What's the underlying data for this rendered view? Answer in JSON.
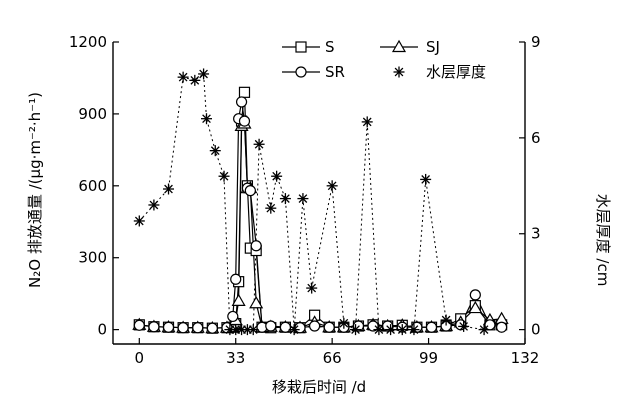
{
  "chart_data": {
    "type": "line",
    "title": "",
    "xlabel": "移栽后时间 /d",
    "ylabel_left": "N₂O 排放通量 /(μg·m⁻²·h⁻¹)",
    "ylabel_right": "水层厚度 /cm",
    "xlim": [
      -9,
      132
    ],
    "ylim_left": [
      -60,
      1200
    ],
    "ylim_right": [
      -0.45,
      9
    ],
    "x_ticks": [
      0,
      33,
      66,
      99,
      132
    ],
    "y_ticks_left": [
      0,
      300,
      600,
      900,
      1200
    ],
    "y_ticks_right": [
      0,
      3,
      6,
      9
    ],
    "x_tick_labels": [
      "0",
      "33",
      "66",
      "99",
      "132"
    ],
    "y_tick_labels_left": [
      "0",
      "300",
      "600",
      "900",
      "1200"
    ],
    "y_tick_labels_right": [
      "0",
      "3",
      "6",
      "9"
    ],
    "legend": {
      "placement": "top-right",
      "labels": [
        "S",
        "SJ",
        "SR",
        "水层厚度"
      ]
    },
    "series": [
      {
        "name": "S",
        "marker": "square",
        "x": [
          0,
          5,
          10,
          15,
          20,
          25,
          30,
          32,
          33,
          34,
          35,
          36,
          37,
          38,
          40,
          42,
          45,
          50,
          55,
          60,
          65,
          70,
          75,
          80,
          85,
          90,
          95,
          100,
          105,
          110,
          115,
          120,
          124
        ],
        "y": [
          20,
          12,
          10,
          8,
          8,
          6,
          8,
          10,
          25,
          200,
          870,
          990,
          600,
          340,
          330,
          10,
          8,
          10,
          8,
          60,
          10,
          10,
          15,
          20,
          15,
          18,
          10,
          10,
          15,
          45,
          100,
          20,
          20
        ]
      },
      {
        "name": "SJ",
        "marker": "triangle",
        "x": [
          0,
          5,
          10,
          15,
          20,
          25,
          30,
          32,
          33,
          34,
          35,
          36,
          37,
          38,
          40,
          42,
          45,
          50,
          55,
          60,
          65,
          70,
          75,
          80,
          85,
          90,
          95,
          100,
          105,
          110,
          115,
          120,
          124
        ],
        "y": [
          20,
          12,
          10,
          8,
          8,
          6,
          8,
          10,
          40,
          120,
          850,
          860,
          590,
          590,
          110,
          10,
          12,
          10,
          8,
          30,
          10,
          10,
          15,
          20,
          15,
          18,
          10,
          10,
          15,
          30,
          90,
          40,
          45
        ]
      },
      {
        "name": "SR",
        "marker": "circle",
        "x": [
          0,
          5,
          10,
          15,
          20,
          25,
          30,
          32,
          33,
          34,
          35,
          36,
          37,
          38,
          40,
          42,
          45,
          50,
          55,
          60,
          65,
          70,
          75,
          80,
          85,
          90,
          95,
          100,
          105,
          110,
          115,
          120,
          124
        ],
        "y": [
          18,
          12,
          10,
          8,
          8,
          6,
          8,
          55,
          210,
          880,
          950,
          870,
          590,
          580,
          350,
          10,
          15,
          10,
          8,
          15,
          10,
          10,
          15,
          15,
          15,
          10,
          10,
          10,
          15,
          20,
          145,
          20,
          10
        ]
      },
      {
        "name": "水层厚度",
        "marker": "asterisk",
        "axis": "right",
        "x": [
          0,
          5,
          10,
          15,
          19,
          22,
          23,
          26,
          29,
          31,
          33,
          35,
          37,
          39,
          41,
          45,
          47,
          50,
          53,
          56,
          59,
          66,
          70,
          74,
          78,
          82,
          86,
          90,
          94,
          98,
          105,
          111,
          118
        ],
        "y": [
          3.4,
          3.9,
          4.4,
          7.9,
          7.8,
          8.0,
          6.6,
          5.6,
          4.8,
          0,
          0,
          0,
          0,
          0,
          5.8,
          3.8,
          4.8,
          4.1,
          0,
          4.1,
          1.3,
          4.5,
          0.2,
          0,
          6.5,
          0,
          0,
          0,
          0,
          4.7,
          0.3,
          0.1,
          0
        ]
      }
    ]
  }
}
